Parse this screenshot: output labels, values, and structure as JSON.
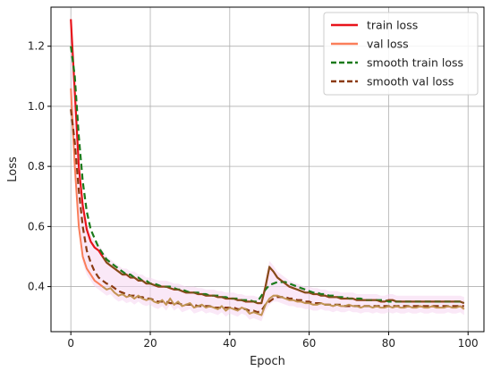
{
  "chart_data": {
    "type": "line",
    "title": "",
    "xlabel": "Epoch",
    "ylabel": "Loss",
    "xlim": [
      -5,
      104
    ],
    "ylim": [
      0.25,
      1.33
    ],
    "xticks": [
      0,
      20,
      40,
      60,
      80,
      100
    ],
    "yticks": [
      0.4,
      0.6,
      0.8,
      1.0,
      1.2
    ],
    "grid": true,
    "legend_position": "top-right",
    "x": [
      0,
      1,
      2,
      3,
      4,
      5,
      6,
      7,
      8,
      9,
      10,
      11,
      12,
      13,
      14,
      15,
      16,
      17,
      18,
      19,
      20,
      21,
      22,
      23,
      24,
      25,
      26,
      27,
      28,
      29,
      30,
      31,
      32,
      33,
      34,
      35,
      36,
      37,
      38,
      39,
      40,
      41,
      42,
      43,
      44,
      45,
      46,
      47,
      48,
      49,
      50,
      51,
      52,
      53,
      54,
      55,
      56,
      57,
      58,
      59,
      60,
      61,
      62,
      63,
      64,
      65,
      66,
      67,
      68,
      69,
      70,
      71,
      72,
      73,
      74,
      75,
      76,
      77,
      78,
      79,
      80,
      81,
      82,
      83,
      84,
      85,
      86,
      87,
      88,
      89,
      90,
      91,
      92,
      93,
      94,
      95,
      96,
      97,
      98,
      99
    ],
    "series": [
      {
        "name": "train loss",
        "style": "solid",
        "values": [
          1.29,
          1.05,
          0.8,
          0.67,
          0.59,
          0.55,
          0.53,
          0.52,
          0.5,
          0.48,
          0.47,
          0.46,
          0.45,
          0.44,
          0.44,
          0.43,
          0.43,
          0.42,
          0.42,
          0.41,
          0.41,
          0.405,
          0.4,
          0.4,
          0.4,
          0.395,
          0.39,
          0.39,
          0.385,
          0.38,
          0.38,
          0.38,
          0.375,
          0.375,
          0.37,
          0.37,
          0.37,
          0.365,
          0.365,
          0.36,
          0.36,
          0.36,
          0.355,
          0.355,
          0.35,
          0.35,
          0.35,
          0.345,
          0.345,
          0.4,
          0.465,
          0.45,
          0.43,
          0.42,
          0.41,
          0.4,
          0.395,
          0.39,
          0.385,
          0.38,
          0.38,
          0.375,
          0.375,
          0.37,
          0.37,
          0.365,
          0.365,
          0.365,
          0.36,
          0.36,
          0.36,
          0.36,
          0.355,
          0.355,
          0.355,
          0.355,
          0.355,
          0.355,
          0.35,
          0.35,
          0.355,
          0.355,
          0.35,
          0.35,
          0.35,
          0.35,
          0.35,
          0.35,
          0.35,
          0.35,
          0.35,
          0.35,
          0.35,
          0.35,
          0.35,
          0.35,
          0.35,
          0.35,
          0.35,
          0.345
        ]
      },
      {
        "name": "val loss",
        "style": "solid",
        "values": [
          1.06,
          0.8,
          0.6,
          0.5,
          0.46,
          0.44,
          0.42,
          0.41,
          0.4,
          0.39,
          0.395,
          0.38,
          0.37,
          0.375,
          0.365,
          0.37,
          0.36,
          0.37,
          0.36,
          0.355,
          0.36,
          0.35,
          0.345,
          0.355,
          0.34,
          0.36,
          0.34,
          0.35,
          0.335,
          0.34,
          0.345,
          0.33,
          0.335,
          0.34,
          0.33,
          0.335,
          0.33,
          0.325,
          0.335,
          0.32,
          0.33,
          0.325,
          0.32,
          0.33,
          0.325,
          0.31,
          0.315,
          0.31,
          0.305,
          0.34,
          0.36,
          0.37,
          0.37,
          0.365,
          0.36,
          0.355,
          0.355,
          0.35,
          0.35,
          0.345,
          0.345,
          0.34,
          0.34,
          0.345,
          0.34,
          0.34,
          0.335,
          0.34,
          0.335,
          0.335,
          0.34,
          0.335,
          0.335,
          0.33,
          0.335,
          0.335,
          0.33,
          0.335,
          0.33,
          0.33,
          0.335,
          0.33,
          0.335,
          0.33,
          0.33,
          0.335,
          0.33,
          0.33,
          0.335,
          0.33,
          0.33,
          0.335,
          0.33,
          0.33,
          0.33,
          0.335,
          0.33,
          0.33,
          0.335,
          0.325
        ]
      },
      {
        "name": "smooth train loss",
        "style": "dashed",
        "values": [
          1.2,
          1.1,
          0.9,
          0.75,
          0.65,
          0.59,
          0.56,
          0.53,
          0.51,
          0.49,
          0.48,
          0.47,
          0.46,
          0.45,
          0.44,
          0.44,
          0.43,
          0.43,
          0.42,
          0.42,
          0.41,
          0.41,
          0.405,
          0.4,
          0.4,
          0.4,
          0.395,
          0.39,
          0.39,
          0.385,
          0.38,
          0.38,
          0.38,
          0.375,
          0.375,
          0.37,
          0.37,
          0.37,
          0.365,
          0.365,
          0.36,
          0.36,
          0.36,
          0.355,
          0.355,
          0.355,
          0.35,
          0.35,
          0.37,
          0.39,
          0.405,
          0.41,
          0.415,
          0.415,
          0.415,
          0.41,
          0.405,
          0.4,
          0.395,
          0.39,
          0.385,
          0.38,
          0.38,
          0.375,
          0.375,
          0.37,
          0.37,
          0.365,
          0.365,
          0.365,
          0.36,
          0.36,
          0.36,
          0.36,
          0.355,
          0.355,
          0.355,
          0.355,
          0.355,
          0.355,
          0.35,
          0.35,
          0.35,
          0.35,
          0.35,
          0.35,
          0.35,
          0.35,
          0.35,
          0.35,
          0.35,
          0.35,
          0.35,
          0.35,
          0.35,
          0.35,
          0.35,
          0.35,
          0.35,
          0.35
        ]
      },
      {
        "name": "smooth val loss",
        "style": "dashed",
        "values": [
          0.99,
          0.88,
          0.72,
          0.6,
          0.52,
          0.48,
          0.45,
          0.43,
          0.42,
          0.41,
          0.405,
          0.395,
          0.385,
          0.38,
          0.375,
          0.37,
          0.37,
          0.365,
          0.365,
          0.36,
          0.36,
          0.355,
          0.35,
          0.35,
          0.35,
          0.345,
          0.345,
          0.345,
          0.34,
          0.34,
          0.34,
          0.34,
          0.335,
          0.335,
          0.335,
          0.335,
          0.33,
          0.33,
          0.33,
          0.33,
          0.33,
          0.33,
          0.325,
          0.325,
          0.325,
          0.32,
          0.32,
          0.315,
          0.32,
          0.34,
          0.35,
          0.36,
          0.365,
          0.365,
          0.365,
          0.36,
          0.36,
          0.355,
          0.355,
          0.35,
          0.35,
          0.345,
          0.345,
          0.345,
          0.34,
          0.34,
          0.34,
          0.34,
          0.34,
          0.335,
          0.335,
          0.335,
          0.335,
          0.335,
          0.335,
          0.335,
          0.335,
          0.335,
          0.335,
          0.335,
          0.335,
          0.335,
          0.335,
          0.335,
          0.335,
          0.335,
          0.335,
          0.335,
          0.335,
          0.335,
          0.335,
          0.335,
          0.335,
          0.335,
          0.335,
          0.335,
          0.335,
          0.335,
          0.335,
          0.335
        ]
      }
    ]
  },
  "colors": {
    "train": "#e8141b",
    "val": "#fa7e5a",
    "smooth_train": "#1b7a1b",
    "smooth_val": "#8b3a12",
    "overlap": "#6b5a1a",
    "band": "#f6d6f0",
    "grid": "#b0b0b0",
    "axis": "#000000"
  }
}
